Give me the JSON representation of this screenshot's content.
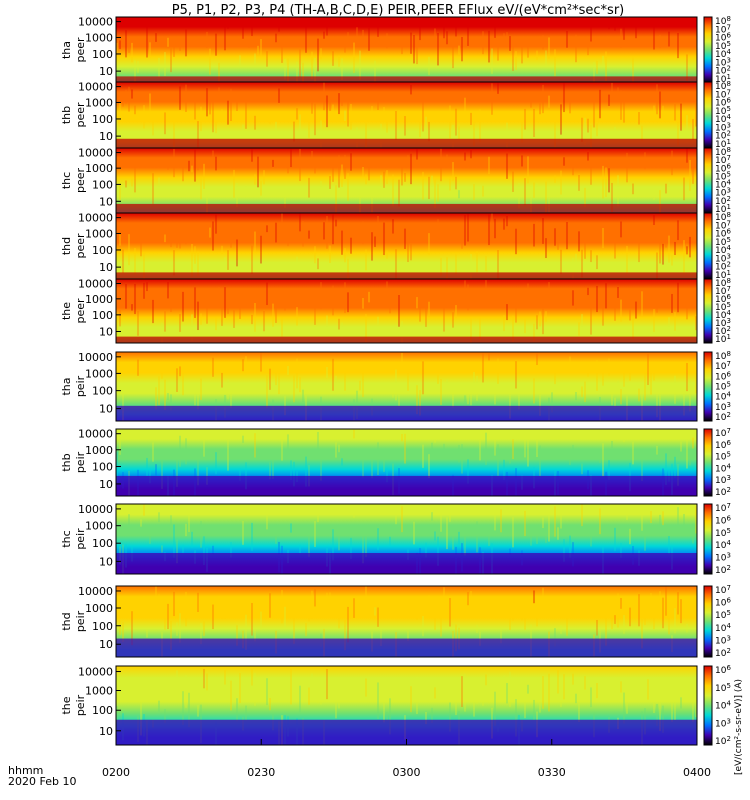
{
  "chart_data": {
    "type": "heatmap",
    "title": "P5, P1, P2, P3, P4 (TH-A,B,C,D,E) PEIR,PEER EFlux eV/(eV*cm²*sec*sr)",
    "x_axis": {
      "tick_labels": [
        "0200",
        "0230",
        "0300",
        "0330",
        "0400"
      ],
      "label_line1": "hhmm",
      "label_line2": "2020 Feb 10"
    },
    "y_tick_labels": [
      "10000",
      "1000",
      "100",
      "10"
    ],
    "colorbar_label": "[eV/(cm²-s-sr-eV)] (A)",
    "panels": [
      {
        "probe": "tha",
        "species": "peer",
        "cbar_exps": [
          "8",
          "7",
          "6",
          "5",
          "4",
          "3",
          "2",
          "1"
        ],
        "level": [
          [
            0.25,
            0.96
          ],
          [
            0.6,
            0.72
          ],
          [
            1.0,
            0.4
          ]
        ],
        "floor": 0.1
      },
      {
        "probe": "thb",
        "species": "peer",
        "cbar_exps": [
          "8",
          "7",
          "6",
          "5",
          "4",
          "3",
          "2",
          "1"
        ],
        "level": [
          [
            0.1,
            0.93
          ],
          [
            0.6,
            0.74
          ],
          [
            1.0,
            0.55
          ]
        ],
        "floor": 0.14
      },
      {
        "probe": "thc",
        "species": "peer",
        "cbar_exps": [
          "8",
          "7",
          "6",
          "5",
          "4",
          "3",
          "2",
          "1"
        ],
        "level": [
          [
            0.1,
            0.93
          ],
          [
            0.55,
            0.72
          ],
          [
            1.0,
            0.38
          ]
        ],
        "floor": 0.14
      },
      {
        "probe": "thd",
        "species": "peer",
        "cbar_exps": [
          "8",
          "7",
          "6",
          "5",
          "4",
          "3",
          "2",
          "1"
        ],
        "level": [
          [
            0.1,
            0.95
          ],
          [
            0.55,
            0.82
          ],
          [
            1.0,
            0.5
          ]
        ],
        "floor": 0.1
      },
      {
        "probe": "the",
        "species": "peer",
        "cbar_exps": [
          "8",
          "7",
          "6",
          "5",
          "4",
          "3",
          "2",
          "1"
        ],
        "level": [
          [
            0.1,
            0.95
          ],
          [
            0.55,
            0.8
          ],
          [
            1.0,
            0.5
          ]
        ],
        "floor": 0.1
      },
      {
        "probe": "tha",
        "species": "peir",
        "cbar_exps": [
          "8",
          "7",
          "6",
          "5",
          "4",
          "3",
          "2"
        ],
        "level": [
          [
            0.1,
            0.8
          ],
          [
            0.5,
            0.66
          ],
          [
            1.0,
            0.3
          ]
        ],
        "floor": 0.22
      },
      {
        "probe": "thb",
        "species": "peir",
        "cbar_exps": [
          "7",
          "6",
          "5",
          "4",
          "3",
          "2"
        ],
        "level": [
          [
            0.1,
            0.62
          ],
          [
            0.4,
            0.48
          ],
          [
            1.0,
            0.12
          ]
        ],
        "floor": 0.3
      },
      {
        "probe": "thc",
        "species": "peir",
        "cbar_exps": [
          "7",
          "6",
          "5",
          "4",
          "3",
          "2"
        ],
        "level": [
          [
            0.1,
            0.62
          ],
          [
            0.4,
            0.48
          ],
          [
            1.0,
            0.12
          ]
        ],
        "floor": 0.3
      },
      {
        "probe": "thd",
        "species": "peir",
        "cbar_exps": [
          "7",
          "6",
          "5",
          "4",
          "3",
          "2"
        ],
        "level": [
          [
            0.1,
            0.82
          ],
          [
            0.55,
            0.7
          ],
          [
            1.0,
            0.35
          ]
        ],
        "floor": 0.26
      },
      {
        "probe": "the",
        "species": "peir",
        "cbar_exps": [
          "6",
          "5",
          "4",
          "3",
          "2"
        ],
        "level": [
          [
            0.1,
            0.7
          ],
          [
            0.55,
            0.55
          ],
          [
            1.0,
            0.2
          ]
        ],
        "floor": 0.32
      }
    ],
    "y_range_eV": [
      5,
      25000
    ],
    "y_scale": "log",
    "time_range": [
      "0200",
      "0400"
    ]
  }
}
